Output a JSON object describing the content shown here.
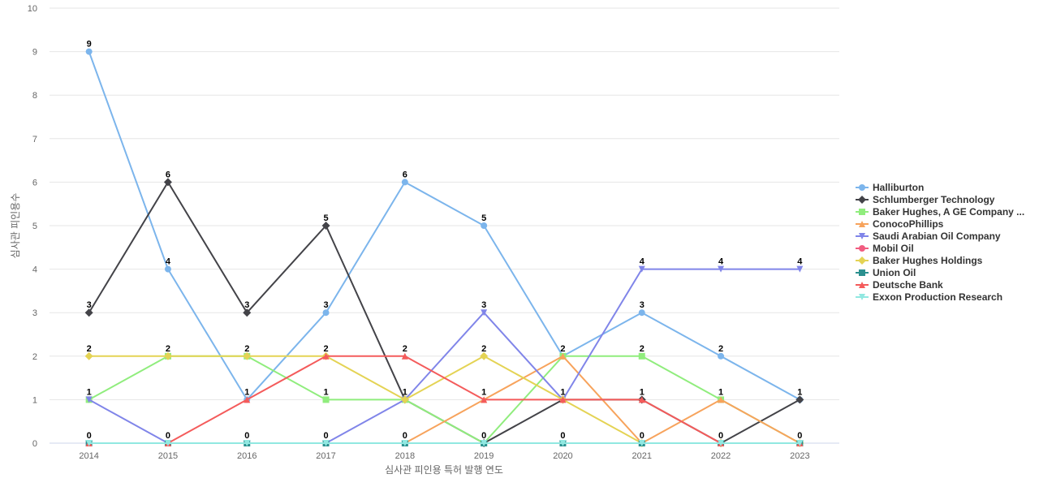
{
  "chart_data": {
    "type": "line",
    "xlabel": "심사관 피인용 특허 발행 연도",
    "ylabel": "심사관 피인용수",
    "ylim": [
      0,
      10
    ],
    "yticks": [
      0,
      1,
      2,
      3,
      4,
      5,
      6,
      7,
      8,
      9,
      10
    ],
    "grid": true,
    "legend_position": "right",
    "categories": [
      "2014",
      "2015",
      "2016",
      "2017",
      "2018",
      "2019",
      "2020",
      "2021",
      "2022",
      "2023"
    ],
    "series": [
      {
        "name": "Halliburton",
        "color": "#7cb5ec",
        "marker": "circle",
        "values": [
          9,
          4,
          1,
          3,
          6,
          5,
          2,
          3,
          2,
          1
        ]
      },
      {
        "name": "Schlumberger Technology",
        "color": "#434348",
        "marker": "diamond",
        "values": [
          3,
          6,
          3,
          5,
          1,
          0,
          1,
          1,
          0,
          1
        ]
      },
      {
        "name": "Baker Hughes, A GE Company ...",
        "color": "#90ed7d",
        "marker": "square",
        "values": [
          1,
          2,
          2,
          1,
          1,
          0,
          2,
          2,
          1,
          0
        ]
      },
      {
        "name": "ConocoPhillips",
        "color": "#f7a35c",
        "marker": "triangle",
        "values": [
          0,
          0,
          0,
          0,
          0,
          1,
          2,
          0,
          1,
          0
        ]
      },
      {
        "name": "Saudi Arabian Oil Company",
        "color": "#8085e9",
        "marker": "triangle-down",
        "values": [
          1,
          0,
          0,
          0,
          1,
          3,
          1,
          4,
          4,
          4
        ]
      },
      {
        "name": "Mobil Oil",
        "color": "#f15c80",
        "marker": "circle",
        "values": [
          0,
          0,
          0,
          0,
          0,
          0,
          0,
          0,
          0,
          0
        ]
      },
      {
        "name": "Baker Hughes Holdings",
        "color": "#e4d354",
        "marker": "diamond",
        "values": [
          2,
          2,
          2,
          2,
          1,
          2,
          1,
          0,
          0,
          0
        ]
      },
      {
        "name": "Union Oil",
        "color": "#2b908f",
        "marker": "square",
        "values": [
          0,
          0,
          0,
          0,
          0,
          0,
          0,
          0,
          0,
          0
        ]
      },
      {
        "name": "Deutsche Bank",
        "color": "#f45b5b",
        "marker": "triangle",
        "values": [
          0,
          0,
          1,
          2,
          2,
          1,
          1,
          1,
          0,
          0
        ]
      },
      {
        "name": "Exxon Production Research",
        "color": "#91e8e1",
        "marker": "triangle-down",
        "values": [
          0,
          0,
          0,
          0,
          0,
          0,
          0,
          0,
          0,
          0
        ]
      }
    ],
    "data_labels": [
      {
        "category": "2014",
        "values": [
          9,
          3,
          2,
          1,
          0
        ]
      },
      {
        "category": "2015",
        "values": [
          6,
          4,
          2,
          0
        ]
      },
      {
        "category": "2016",
        "values": [
          3,
          2,
          1,
          0
        ]
      },
      {
        "category": "2017",
        "values": [
          5,
          3,
          2,
          1,
          0
        ]
      },
      {
        "category": "2018",
        "values": [
          6,
          2,
          1,
          0
        ]
      },
      {
        "category": "2019",
        "values": [
          5,
          3,
          2,
          1,
          0
        ]
      },
      {
        "category": "2020",
        "values": [
          2,
          1,
          0
        ]
      },
      {
        "category": "2021",
        "values": [
          4,
          3,
          2,
          1,
          0
        ]
      },
      {
        "category": "2022",
        "values": [
          4,
          2,
          1,
          0
        ]
      },
      {
        "category": "2023",
        "values": [
          4,
          1,
          0
        ]
      }
    ]
  }
}
